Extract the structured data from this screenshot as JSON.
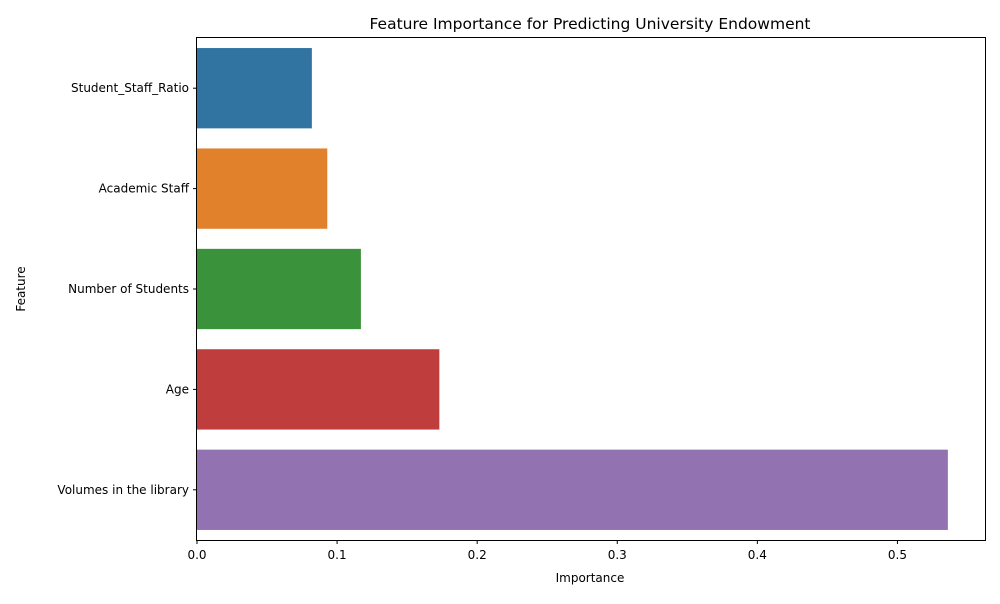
{
  "chart_data": {
    "type": "bar",
    "orientation": "horizontal",
    "title": "Feature Importance for Predicting University Endowment",
    "xlabel": "Importance",
    "ylabel": "Feature",
    "categories": [
      "Student_Staff_Ratio",
      "Academic Staff",
      "Number of Students",
      "Age",
      "Volumes in the library"
    ],
    "values": [
      0.082,
      0.093,
      0.117,
      0.173,
      0.536
    ],
    "colors": [
      "#3274a1",
      "#e1812c",
      "#3a923a",
      "#c03d3e",
      "#9372b2"
    ],
    "xlim": [
      0,
      0.5625
    ],
    "xticks": [
      0.0,
      0.1,
      0.2,
      0.3,
      0.4,
      0.5
    ],
    "xtick_labels": [
      "0.0",
      "0.1",
      "0.2",
      "0.3",
      "0.4",
      "0.5"
    ],
    "grid": false,
    "legend": "none"
  }
}
